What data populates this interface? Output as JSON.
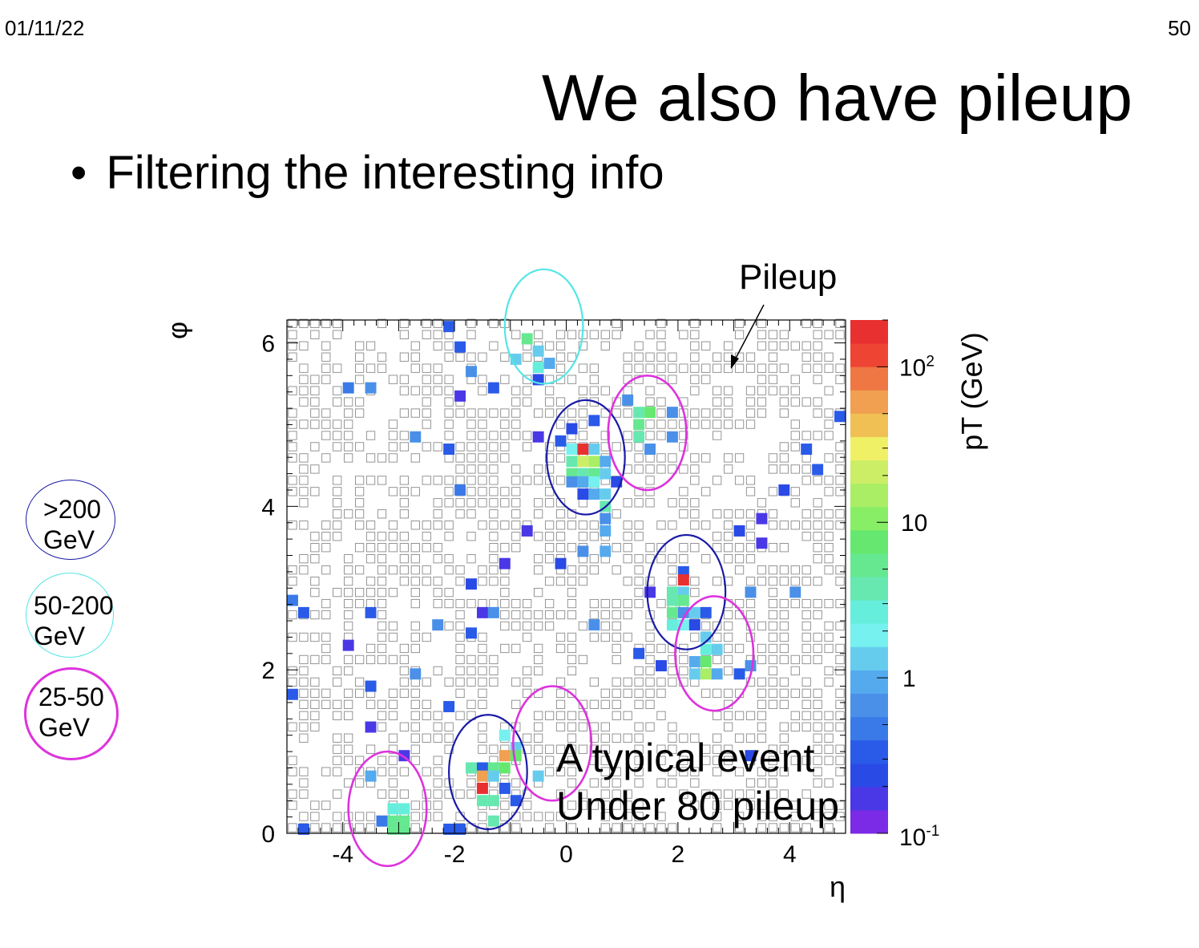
{
  "slide": {
    "date": "01/11/22",
    "page_number": "50",
    "title": "We also have pileup",
    "bullet": "Filtering the interesting info",
    "bullet_glyph": "•"
  },
  "legend_circles": [
    {
      "label_line1": ">200",
      "label_line2": "GeV",
      "color": "#1a1aa6"
    },
    {
      "label_line1": "50-200",
      "label_line2": "GeV",
      "color": "#55e5e5"
    },
    {
      "label_line1": "25-50",
      "label_line2": "GeV",
      "color": "#dd33dd"
    }
  ],
  "annotations": {
    "pileup_label": "Pileup",
    "event_line1": "A typical event",
    "event_line2": "Under 80 pileup"
  },
  "chart_data": {
    "type": "heatmap",
    "xlabel": "η",
    "ylabel": "φ",
    "xlim": [
      -5,
      5
    ],
    "ylim": [
      0,
      6.28
    ],
    "x_ticks": [
      -4,
      -2,
      0,
      2,
      4
    ],
    "y_ticks": [
      0,
      2,
      4,
      6
    ],
    "cell_size": {
      "eta": 0.2,
      "phi": 0.1371
    },
    "colorbar": {
      "label": "pT (GeV)",
      "scale": "log",
      "range": [
        0.1,
        200
      ],
      "tick_labels": [
        "10-1",
        "1",
        "10",
        "102"
      ],
      "colors": [
        "#7b2ae6",
        "#4a38e6",
        "#2a4ae6",
        "#2a5ae8",
        "#3a7ae8",
        "#4a90e8",
        "#55aaee",
        "#66ccee",
        "#77f0f0",
        "#66eedd",
        "#66e8b0",
        "#66e890",
        "#66e870",
        "#88ee66",
        "#aaee66",
        "#ccee66",
        "#f0f066",
        "#f0c055",
        "#f0a050",
        "#ee7744",
        "#ee4433",
        "#e83030"
      ]
    },
    "hot_cells": [
      {
        "eta": -0.7,
        "phi": 6.05,
        "pt": 5
      },
      {
        "eta": -0.5,
        "phi": 5.9,
        "pt": 1.2
      },
      {
        "eta": -0.9,
        "phi": 5.8,
        "pt": 1.2
      },
      {
        "eta": -0.5,
        "phi": 5.7,
        "pt": 3
      },
      {
        "eta": -0.3,
        "phi": 5.75,
        "pt": 1
      },
      {
        "eta": -0.5,
        "phi": 5.55,
        "pt": 0.25
      },
      {
        "eta": -2.1,
        "phi": 6.2,
        "pt": 0.3
      },
      {
        "eta": -1.9,
        "phi": 5.95,
        "pt": 0.3
      },
      {
        "eta": -1.7,
        "phi": 5.65,
        "pt": 0.7
      },
      {
        "eta": -1.3,
        "phi": 5.45,
        "pt": 0.3
      },
      {
        "eta": -1.9,
        "phi": 5.35,
        "pt": 0.15
      },
      {
        "eta": -3.9,
        "phi": 5.45,
        "pt": 0.5
      },
      {
        "eta": -3.5,
        "phi": 5.45,
        "pt": 0.7
      },
      {
        "eta": -2.7,
        "phi": 4.85,
        "pt": 0.6
      },
      {
        "eta": -2.1,
        "phi": 4.7,
        "pt": 0.3
      },
      {
        "eta": -1.9,
        "phi": 4.2,
        "pt": 0.5
      },
      {
        "eta": -0.5,
        "phi": 4.85,
        "pt": 0.15
      },
      {
        "eta": 0.1,
        "phi": 4.95,
        "pt": 0.2
      },
      {
        "eta": 0.5,
        "phi": 5.05,
        "pt": 0.3
      },
      {
        "eta": -0.1,
        "phi": 4.8,
        "pt": 0.3
      },
      {
        "eta": 0.1,
        "phi": 4.7,
        "pt": 2
      },
      {
        "eta": 0.3,
        "phi": 4.7,
        "pt": 150
      },
      {
        "eta": 0.5,
        "phi": 4.7,
        "pt": 1.2
      },
      {
        "eta": 0.1,
        "phi": 4.55,
        "pt": 4
      },
      {
        "eta": 0.3,
        "phi": 4.55,
        "pt": 20
      },
      {
        "eta": 0.5,
        "phi": 4.55,
        "pt": 15
      },
      {
        "eta": 0.7,
        "phi": 4.55,
        "pt": 1
      },
      {
        "eta": 0.1,
        "phi": 4.4,
        "pt": 5
      },
      {
        "eta": 0.3,
        "phi": 4.4,
        "pt": 4
      },
      {
        "eta": 0.5,
        "phi": 4.4,
        "pt": 5
      },
      {
        "eta": 0.7,
        "phi": 4.4,
        "pt": 1.2
      },
      {
        "eta": 0.1,
        "phi": 4.3,
        "pt": 0.6
      },
      {
        "eta": 0.3,
        "phi": 4.3,
        "pt": 1
      },
      {
        "eta": 0.5,
        "phi": 4.3,
        "pt": 2
      },
      {
        "eta": 0.9,
        "phi": 4.3,
        "pt": 0.2
      },
      {
        "eta": 0.3,
        "phi": 4.15,
        "pt": 0.25
      },
      {
        "eta": 0.5,
        "phi": 4.15,
        "pt": 1
      },
      {
        "eta": 0.7,
        "phi": 4.15,
        "pt": 1.2
      },
      {
        "eta": 0.7,
        "phi": 4.0,
        "pt": 4
      },
      {
        "eta": 1.1,
        "phi": 5.3,
        "pt": 0.7
      },
      {
        "eta": 1.3,
        "phi": 5.15,
        "pt": 4
      },
      {
        "eta": 1.5,
        "phi": 5.15,
        "pt": 7
      },
      {
        "eta": 1.9,
        "phi": 5.15,
        "pt": 0.6
      },
      {
        "eta": 1.3,
        "phi": 5.0,
        "pt": 5
      },
      {
        "eta": 1.3,
        "phi": 4.85,
        "pt": 4
      },
      {
        "eta": 1.9,
        "phi": 4.85,
        "pt": 0.6
      },
      {
        "eta": 1.5,
        "phi": 4.7,
        "pt": 0.6
      },
      {
        "eta": 0.7,
        "phi": 3.7,
        "pt": 1
      },
      {
        "eta": 0.7,
        "phi": 3.85,
        "pt": 0.7
      },
      {
        "eta": 0.3,
        "phi": 3.45,
        "pt": 0.7
      },
      {
        "eta": 0.7,
        "phi": 3.45,
        "pt": 1
      },
      {
        "eta": -0.7,
        "phi": 3.7,
        "pt": 0.15
      },
      {
        "eta": -0.1,
        "phi": 3.3,
        "pt": 0.25
      },
      {
        "eta": -1.1,
        "phi": 3.3,
        "pt": 0.15
      },
      {
        "eta": -1.7,
        "phi": 3.05,
        "pt": 0.25
      },
      {
        "eta": -3.5,
        "phi": 2.7,
        "pt": 0.3
      },
      {
        "eta": -4.9,
        "phi": 2.85,
        "pt": 0.5
      },
      {
        "eta": -4.7,
        "phi": 2.7,
        "pt": 0.3
      },
      {
        "eta": -3.9,
        "phi": 2.3,
        "pt": 0.15
      },
      {
        "eta": -2.3,
        "phi": 2.55,
        "pt": 0.6
      },
      {
        "eta": -1.7,
        "phi": 2.45,
        "pt": 0.3
      },
      {
        "eta": -1.5,
        "phi": 2.7,
        "pt": 0.15
      },
      {
        "eta": -1.3,
        "phi": 2.7,
        "pt": 0.6
      },
      {
        "eta": 0.5,
        "phi": 2.55,
        "pt": 0.6
      },
      {
        "eta": -2.7,
        "phi": 1.95,
        "pt": 0.7
      },
      {
        "eta": -3.5,
        "phi": 1.8,
        "pt": 0.3
      },
      {
        "eta": -4.9,
        "phi": 1.7,
        "pt": 0.3
      },
      {
        "eta": -2.1,
        "phi": 1.55,
        "pt": 0.3
      },
      {
        "eta": -3.5,
        "phi": 1.3,
        "pt": 0.15
      },
      {
        "eta": -2.9,
        "phi": 0.95,
        "pt": 0.15
      },
      {
        "eta": 2.1,
        "phi": 3.2,
        "pt": 0.3
      },
      {
        "eta": 2.1,
        "phi": 3.1,
        "pt": 150
      },
      {
        "eta": 1.5,
        "phi": 2.95,
        "pt": 0.15
      },
      {
        "eta": 1.9,
        "phi": 2.95,
        "pt": 4
      },
      {
        "eta": 2.1,
        "phi": 2.95,
        "pt": 1.5
      },
      {
        "eta": 1.9,
        "phi": 2.85,
        "pt": 4
      },
      {
        "eta": 2.1,
        "phi": 2.85,
        "pt": 5
      },
      {
        "eta": 1.9,
        "phi": 2.7,
        "pt": 5
      },
      {
        "eta": 2.1,
        "phi": 2.7,
        "pt": 0.6
      },
      {
        "eta": 2.3,
        "phi": 2.7,
        "pt": 1.2
      },
      {
        "eta": 2.5,
        "phi": 2.7,
        "pt": 0.3
      },
      {
        "eta": 1.9,
        "phi": 2.55,
        "pt": 3
      },
      {
        "eta": 2.1,
        "phi": 2.55,
        "pt": 2
      },
      {
        "eta": 2.3,
        "phi": 2.55,
        "pt": 0.25
      },
      {
        "eta": 2.5,
        "phi": 2.4,
        "pt": 1.2
      },
      {
        "eta": 2.5,
        "phi": 2.25,
        "pt": 3
      },
      {
        "eta": 2.7,
        "phi": 2.25,
        "pt": 1.2
      },
      {
        "eta": 2.3,
        "phi": 2.1,
        "pt": 1
      },
      {
        "eta": 2.5,
        "phi": 2.1,
        "pt": 8
      },
      {
        "eta": 2.5,
        "phi": 1.95,
        "pt": 15
      },
      {
        "eta": 2.7,
        "phi": 1.95,
        "pt": 1
      },
      {
        "eta": 2.3,
        "phi": 1.95,
        "pt": 1.2
      },
      {
        "eta": 1.3,
        "phi": 2.2,
        "pt": 0.3
      },
      {
        "eta": 1.7,
        "phi": 2.05,
        "pt": 0.25
      },
      {
        "eta": 3.1,
        "phi": 1.95,
        "pt": 0.3
      },
      {
        "eta": 3.3,
        "phi": 2.05,
        "pt": 0.7
      },
      {
        "eta": 3.3,
        "phi": 2.95,
        "pt": 0.6
      },
      {
        "eta": 4.1,
        "phi": 2.95,
        "pt": 0.6
      },
      {
        "eta": 3.1,
        "phi": 3.7,
        "pt": 0.25
      },
      {
        "eta": 3.5,
        "phi": 3.85,
        "pt": 0.15
      },
      {
        "eta": 3.5,
        "phi": 3.55,
        "pt": 0.15
      },
      {
        "eta": 3.9,
        "phi": 4.2,
        "pt": 0.25
      },
      {
        "eta": 4.3,
        "phi": 4.7,
        "pt": 0.3
      },
      {
        "eta": 4.5,
        "phi": 4.45,
        "pt": 0.3
      },
      {
        "eta": 4.9,
        "phi": 5.1,
        "pt": 0.3
      },
      {
        "eta": 3.3,
        "phi": 0.95,
        "pt": 0.2
      },
      {
        "eta": -1.1,
        "phi": 1.2,
        "pt": 2
      },
      {
        "eta": -0.9,
        "phi": 1.05,
        "pt": 1.5
      },
      {
        "eta": -1.1,
        "phi": 0.95,
        "pt": 60
      },
      {
        "eta": -0.9,
        "phi": 0.95,
        "pt": 7
      },
      {
        "eta": -1.7,
        "phi": 0.8,
        "pt": 4
      },
      {
        "eta": -1.5,
        "phi": 0.8,
        "pt": 0.3
      },
      {
        "eta": -1.3,
        "phi": 0.8,
        "pt": 5
      },
      {
        "eta": -1.1,
        "phi": 0.8,
        "pt": 7
      },
      {
        "eta": -1.5,
        "phi": 0.7,
        "pt": 60
      },
      {
        "eta": -1.3,
        "phi": 0.7,
        "pt": 1.2
      },
      {
        "eta": -1.5,
        "phi": 0.55,
        "pt": 150
      },
      {
        "eta": -1.1,
        "phi": 0.55,
        "pt": 0.3
      },
      {
        "eta": -1.5,
        "phi": 0.4,
        "pt": 4
      },
      {
        "eta": -1.3,
        "phi": 0.4,
        "pt": 4
      },
      {
        "eta": -0.9,
        "phi": 0.4,
        "pt": 0.3
      },
      {
        "eta": -1.3,
        "phi": 0.15,
        "pt": 4
      },
      {
        "eta": -0.5,
        "phi": 0.7,
        "pt": 1.2
      },
      {
        "eta": -2.1,
        "phi": 0.05,
        "pt": 0.3
      },
      {
        "eta": -1.9,
        "phi": 0.05,
        "pt": 0.3
      },
      {
        "eta": -3.5,
        "phi": 0.7,
        "pt": 1
      },
      {
        "eta": -3.1,
        "phi": 0.3,
        "pt": 3
      },
      {
        "eta": -2.9,
        "phi": 0.3,
        "pt": 3
      },
      {
        "eta": -3.3,
        "phi": 0.15,
        "pt": 0.5
      },
      {
        "eta": -3.1,
        "phi": 0.15,
        "pt": 5
      },
      {
        "eta": -2.9,
        "phi": 0.15,
        "pt": 5
      },
      {
        "eta": -3.1,
        "phi": 0.05,
        "pt": 5
      },
      {
        "eta": -2.9,
        "phi": 0.05,
        "pt": 5
      },
      {
        "eta": -4.7,
        "phi": 0.05,
        "pt": 0.3
      }
    ],
    "circles": [
      {
        "category": ">200 GeV",
        "eta": 0.35,
        "phi": 4.6,
        "r_eta": 0.7,
        "r_phi": 0.7
      },
      {
        "category": ">200 GeV",
        "eta": 2.15,
        "phi": 2.95,
        "r_eta": 0.7,
        "r_phi": 0.7
      },
      {
        "category": ">200 GeV",
        "eta": -1.4,
        "phi": 0.75,
        "r_eta": 0.7,
        "r_phi": 0.7
      },
      {
        "category": "50-200 GeV",
        "eta": -0.4,
        "phi": 6.2,
        "r_eta": 0.7,
        "r_phi": 0.7
      },
      {
        "category": "25-50 GeV",
        "eta": 1.45,
        "phi": 4.9,
        "r_eta": 0.7,
        "r_phi": 0.7
      },
      {
        "category": "25-50 GeV",
        "eta": 2.65,
        "phi": 2.2,
        "r_eta": 0.7,
        "r_phi": 0.7
      },
      {
        "category": "25-50 GeV",
        "eta": -0.25,
        "phi": 1.1,
        "r_eta": 0.7,
        "r_phi": 0.7
      },
      {
        "category": "25-50 GeV",
        "eta": -3.2,
        "phi": 0.3,
        "r_eta": 0.7,
        "r_phi": 0.7
      }
    ]
  }
}
